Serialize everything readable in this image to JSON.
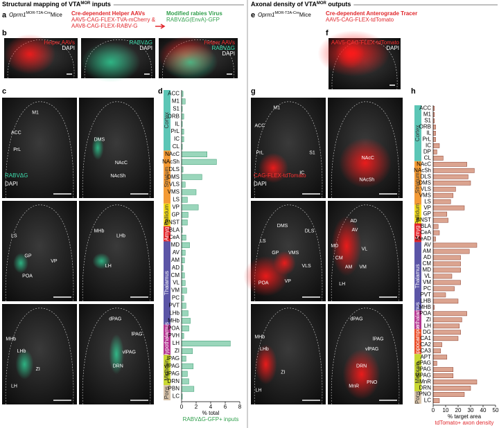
{
  "left": {
    "title": "Structural mapping of VTA",
    "title_sup": "MOR",
    "title_end": " inputs"
  },
  "right": {
    "title": "Axonal density of VTA",
    "title_sup": "MOR",
    "title_end": " outputs"
  },
  "panels": [
    "a",
    "b",
    "c",
    "d",
    "e",
    "f",
    "g",
    "h"
  ],
  "a": {
    "mouse": "Oprm1",
    "mouse_sup": "MOR-T2A-Cre",
    "mouse_end": "Mice",
    "helper_title": "Cre-dependent Helper AAVs",
    "helper_lines": [
      "AAV5-CAG-FLEX-TVA-mCherry &",
      "AAV8-CAG-FLEX-RABV-G"
    ],
    "virus_title": "Modified rabies Virus",
    "virus_line": "RABVΔG(EnvA)-GFP"
  },
  "e": {
    "mouse": "Oprm1",
    "mouse_sup": "MOR-T2A-Cre",
    "mouse_end": "Mice",
    "tracer_title": "Cre-dependent Anterograde Tracer",
    "tracer_line": "AAV5-CAG-FLEX-tdTomato"
  },
  "b": {
    "images": [
      {
        "labels": [
          {
            "text": "Helper AAVs",
            "color": "#ff3030"
          },
          {
            "text": "DAPI",
            "color": "#ffffff"
          }
        ]
      },
      {
        "labels": [
          {
            "text": "RABVΔG",
            "color": "#3fe0b0"
          },
          {
            "text": "DAPI",
            "color": "#ffffff"
          }
        ]
      },
      {
        "labels": [
          {
            "text": "Helper AAVs",
            "color": "#ff3030"
          },
          {
            "text": "RABVΔG",
            "color": "#3fe0b0"
          },
          {
            "text": "DAPI",
            "color": "#ffffff"
          }
        ]
      }
    ]
  },
  "f": {
    "labels": [
      {
        "text": "AAV5-CAG-FLEX-tdTomato",
        "color": "#ff3030"
      },
      {
        "text": "DAPI",
        "color": "#ffffff"
      }
    ]
  },
  "c": {
    "images": [
      {
        "labels": [
          "ACC",
          "M1",
          "PrL"
        ],
        "channel": {
          "text": "RABVΔG",
          "color": "#3fe0b0"
        },
        "dapi": "DAPI"
      },
      {
        "labels": [
          "DMS",
          "NAcC",
          "NAcSh"
        ]
      },
      {
        "labels": [
          "LS",
          "GP",
          "POA",
          "VP"
        ]
      },
      {
        "labels": [
          "MHb",
          "LHb",
          "LH"
        ]
      },
      {
        "labels": [
          "MHb",
          "LHb",
          "ZI",
          "LH"
        ]
      },
      {
        "labels": [
          "dPAG",
          "lPAG",
          "vlPAG",
          "DRN"
        ]
      }
    ]
  },
  "g": {
    "images": [
      {
        "labels": [
          "M1",
          "ACC",
          "PrL",
          "S1",
          "IC"
        ],
        "channel": {
          "text": "CAG-FLEX-tdTomato",
          "color": "#ff3030"
        },
        "dapi": "DAPI"
      },
      {
        "labels": [
          "NAcC",
          "NAcSh"
        ]
      },
      {
        "labels": [
          "DMS",
          "DLS",
          "LS",
          "GP",
          "VMS",
          "VLS",
          "POA",
          "VP"
        ]
      },
      {
        "labels": [
          "AD",
          "AV",
          "MD",
          "VL",
          "CM",
          "AM",
          "VM",
          "LH"
        ]
      },
      {
        "labels": [
          "MHb",
          "LHb",
          "ZI",
          "LH"
        ]
      },
      {
        "labels": [
          "dPAG",
          "lPAG",
          "vlPAG",
          "DRN",
          "MnR",
          "PNO"
        ]
      }
    ]
  },
  "chart_data": [
    {
      "type": "bar",
      "orientation": "horizontal",
      "color": "#9ad6bb",
      "edge": "#3a9a70",
      "xlim": [
        0,
        8
      ],
      "xticks": [
        0,
        2,
        4,
        6,
        8
      ],
      "xlabel": "% total",
      "xlabel2": "RABVΔG-GFP+ inputs",
      "xlabel2_color": "#2e9e4a",
      "groups": [
        {
          "name": "Cortex",
          "color": "#5cc6b6",
          "categories": [
            "ACC",
            "M1",
            "S1",
            "ORB",
            "IL",
            "PrL",
            "IC",
            "CL"
          ],
          "values": [
            0.2,
            0.5,
            0.1,
            0.3,
            0.1,
            0.3,
            0.3,
            0.1
          ]
        },
        {
          "name": "Striatum",
          "color": "#f39a35",
          "categories": [
            "NAcC",
            "NAcSh",
            "DLS",
            "DMS",
            "VLS",
            "VMS",
            "LS"
          ],
          "values": [
            3.5,
            4.8,
            0.2,
            2.8,
            0.5,
            2.0,
            0.8
          ]
        },
        {
          "name": "Pallidum",
          "color": "#f6df1e",
          "categories": [
            "VP",
            "GP",
            "BNST"
          ],
          "values": [
            2.3,
            0.9,
            0.8
          ]
        },
        {
          "name": "Amyg",
          "color": "#e3262b",
          "categories": [
            "BLA",
            "CeA"
          ],
          "values": [
            0.1,
            0.6
          ]
        },
        {
          "name": "Thalamus",
          "color": "#5b55a6",
          "categories": [
            "MD",
            "AV",
            "AM",
            "AD",
            "CM",
            "VL",
            "VM",
            "PC",
            "PVT",
            "LHb",
            "MHb"
          ],
          "values": [
            1.1,
            0.5,
            0.4,
            0.2,
            0.4,
            0.5,
            0.7,
            0.3,
            0.6,
            0.9,
            1.2
          ]
        },
        {
          "name": "Hypothalamus",
          "color": "#b3318f",
          "categories": [
            "POA",
            "PVH",
            "LH",
            "ZI"
          ],
          "values": [
            1.0,
            0.3,
            6.7,
            1.5
          ]
        },
        {
          "name": "Midbrain",
          "color": "#c9d731",
          "categories": [
            "lPAG",
            "vlPAG",
            "dPAG",
            "DRN"
          ],
          "values": [
            0.6,
            1.6,
            0.8,
            1.0
          ]
        },
        {
          "name": "Pons",
          "color": "#d8c3a9",
          "categories": [
            "PBN",
            "LC"
          ],
          "values": [
            1.7,
            0.1
          ]
        }
      ]
    },
    {
      "type": "bar",
      "orientation": "horizontal",
      "color": "#dba490",
      "edge": "#8a3a2a",
      "xlim": [
        0,
        50
      ],
      "xticks": [
        0,
        10,
        20,
        30,
        40,
        50
      ],
      "xlabel": "% target area",
      "xlabel2": "tdTomato+ axon density",
      "xlabel2_color": "#e0262b",
      "groups": [
        {
          "name": "Cortex",
          "color": "#5cc6b6",
          "categories": [
            "ACC",
            "M1",
            "S1",
            "ORB",
            "IL",
            "PrL",
            "IC",
            "DP",
            "CL"
          ],
          "values": [
            1,
            1,
            1,
            2,
            2,
            2,
            5,
            3,
            8
          ]
        },
        {
          "name": "Striatum",
          "color": "#f39a35",
          "categories": [
            "NAcC",
            "NAcSh",
            "DLS",
            "DMS",
            "VLS",
            "VMS",
            "LS"
          ],
          "values": [
            27,
            33,
            28,
            30,
            18,
            16,
            14
          ]
        },
        {
          "name": "Pallidum",
          "color": "#f6df1e",
          "categories": [
            "VP",
            "GP",
            "BNST"
          ],
          "values": [
            25,
            11,
            12
          ]
        },
        {
          "name": "Amyg",
          "color": "#e3262b",
          "categories": [
            "BLA",
            "CeA",
            "MeAD"
          ],
          "values": [
            4,
            5,
            2
          ]
        },
        {
          "name": "Thalamus",
          "color": "#5b55a6",
          "categories": [
            "AV",
            "AM",
            "AD",
            "CM",
            "MD",
            "VL",
            "VM",
            "PC",
            "PVT",
            "LHB",
            "MHB"
          ],
          "values": [
            35,
            29,
            22,
            22,
            22,
            15,
            22,
            17,
            10,
            20,
            1
          ]
        },
        {
          "name": "Hypothalamus",
          "color": "#b3318f",
          "categories": [
            "POA",
            "ZI",
            "LH"
          ],
          "values": [
            27,
            23,
            21
          ]
        },
        {
          "name": "Hippocampus",
          "color": "#e84c27",
          "categories": [
            "DG",
            "CA1",
            "CA2",
            "CA3"
          ],
          "values": [
            22,
            20,
            7,
            6
          ]
        },
        {
          "name": "Midbrain",
          "color": "#c9d731",
          "categories": [
            "APT",
            "dPAG",
            "lPAG",
            "vlPAG",
            "MnR",
            "DRN"
          ],
          "values": [
            11,
            3,
            16,
            16,
            35,
            30
          ]
        },
        {
          "name": "Pons",
          "color": "#d8c3a9",
          "categories": [
            "PNO",
            "LC"
          ],
          "values": [
            25,
            5
          ]
        }
      ]
    }
  ]
}
